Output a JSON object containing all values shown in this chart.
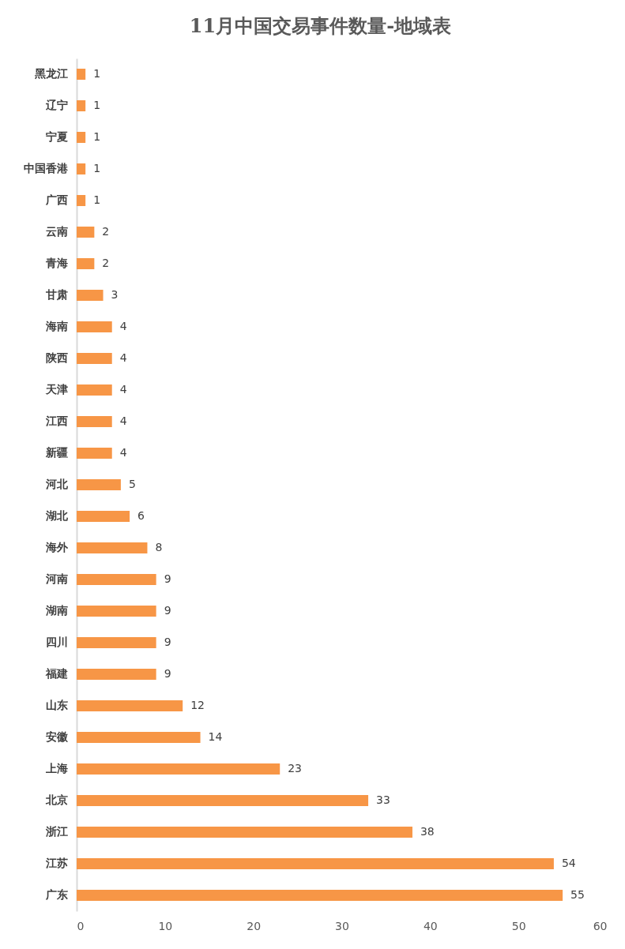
{
  "chart_data": {
    "type": "bar",
    "orientation": "horizontal",
    "title": "11月中国交易事件数量-地域表",
    "categories": [
      "黑龙江",
      "辽宁",
      "宁夏",
      "中国香港",
      "广西",
      "云南",
      "青海",
      "甘肃",
      "海南",
      "陕西",
      "天津",
      "江西",
      "新疆",
      "河北",
      "湖北",
      "海外",
      "河南",
      "湖南",
      "四川",
      "福建",
      "山东",
      "安徽",
      "上海",
      "北京",
      "浙江",
      "江苏",
      "广东"
    ],
    "values": [
      1,
      1,
      1,
      1,
      1,
      2,
      2,
      3,
      4,
      4,
      4,
      4,
      4,
      5,
      6,
      8,
      9,
      9,
      9,
      9,
      12,
      14,
      23,
      33,
      38,
      54,
      55
    ],
    "color": "#f79646",
    "xlim": [
      0,
      60
    ],
    "xticks": [
      0,
      10,
      20,
      30,
      40,
      50,
      60
    ],
    "data_labels": true
  }
}
